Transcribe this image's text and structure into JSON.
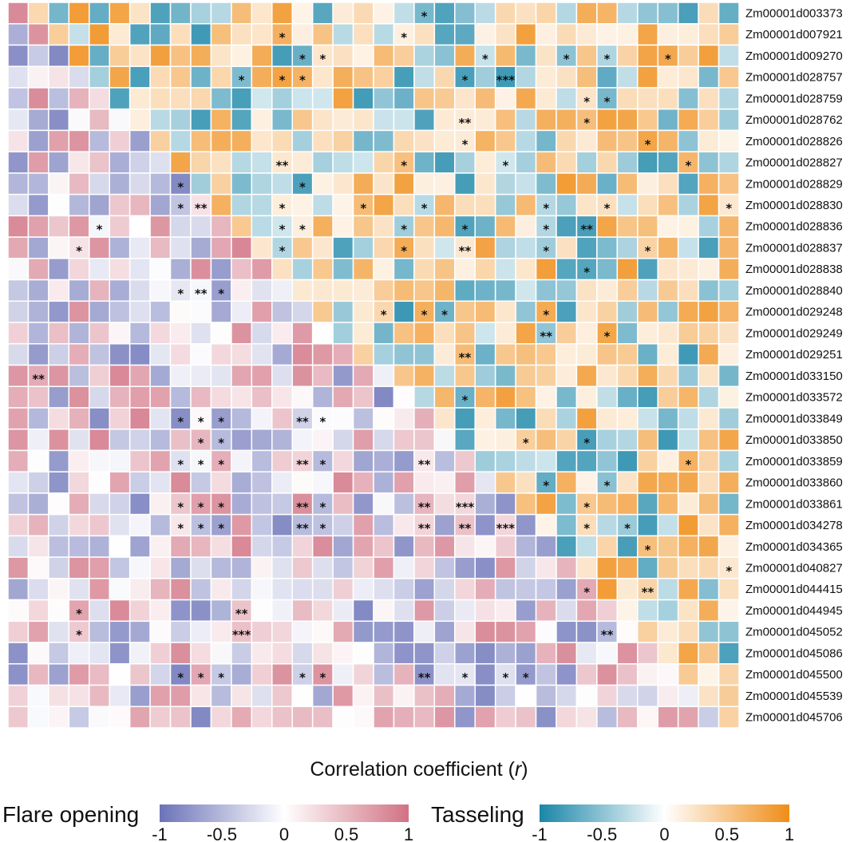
{
  "chart_data": {
    "type": "heatmap",
    "title": "Correlation coefficient (r)",
    "title_main": "Correlation coefficient (",
    "title_var": "r",
    "title_close": ")",
    "genes": [
      "Zm00001d003373",
      "Zm00001d007921",
      "Zm00001d009270",
      "Zm00001d028757",
      "Zm00001d028759",
      "Zm00001d028762",
      "Zm00001d028826",
      "Zm00001d028827",
      "Zm00001d028829",
      "Zm00001d028830",
      "Zm00001d028836",
      "Zm00001d028837",
      "Zm00001d028838",
      "Zm00001d028840",
      "Zm00001d029248",
      "Zm00001d029249",
      "Zm00001d029251",
      "Zm00001d033150",
      "Zm00001d033572",
      "Zm00001d033849",
      "Zm00001d033850",
      "Zm00001d033859",
      "Zm00001d033860",
      "Zm00001d033861",
      "Zm00001d034278",
      "Zm00001d034365",
      "Zm00001d040827",
      "Zm00001d044415",
      "Zm00001d044945",
      "Zm00001d045052",
      "Zm00001d045086",
      "Zm00001d045500",
      "Zm00001d045539",
      "Zm00001d045706"
    ],
    "triangles": {
      "lower": "Flare opening",
      "upper": "Tasseling"
    },
    "legends": [
      {
        "title": "Flare opening",
        "colors": [
          "#6b73b8",
          "#ffffff",
          "#d17283"
        ],
        "ticks": [
          "-1",
          "-0.5",
          "0",
          "0.5",
          "1"
        ],
        "range": [
          -1,
          1
        ]
      },
      {
        "title": "Tasseling",
        "colors": [
          "#1a86a8",
          "#ffffff",
          "#f08d17"
        ],
        "ticks": [
          "-1",
          "-0.5",
          "0",
          "0.5",
          "1"
        ],
        "range": [
          -1,
          1
        ]
      }
    ],
    "significant_cells": [
      {
        "row": 0,
        "col": 20,
        "label": "*"
      },
      {
        "row": 1,
        "col": 13,
        "label": "*"
      },
      {
        "row": 1,
        "col": 19,
        "label": "*"
      },
      {
        "row": 2,
        "col": 14,
        "label": "*"
      },
      {
        "row": 2,
        "col": 15,
        "label": "*"
      },
      {
        "row": 2,
        "col": 23,
        "label": "*"
      },
      {
        "row": 2,
        "col": 27,
        "label": "*"
      },
      {
        "row": 2,
        "col": 29,
        "label": "*"
      },
      {
        "row": 2,
        "col": 32,
        "label": "*"
      },
      {
        "row": 3,
        "col": 11,
        "label": "*"
      },
      {
        "row": 3,
        "col": 13,
        "label": "*"
      },
      {
        "row": 3,
        "col": 14,
        "label": "*"
      },
      {
        "row": 3,
        "col": 22,
        "label": "*"
      },
      {
        "row": 3,
        "col": 24,
        "label": "***"
      },
      {
        "row": 4,
        "col": 28,
        "label": "*"
      },
      {
        "row": 4,
        "col": 29,
        "label": "*"
      },
      {
        "row": 5,
        "col": 22,
        "label": "**"
      },
      {
        "row": 5,
        "col": 28,
        "label": "*"
      },
      {
        "row": 6,
        "col": 22,
        "label": "*"
      },
      {
        "row": 6,
        "col": 31,
        "label": "*"
      },
      {
        "row": 7,
        "col": 13,
        "label": "**"
      },
      {
        "row": 7,
        "col": 19,
        "label": "*"
      },
      {
        "row": 7,
        "col": 24,
        "label": "*"
      },
      {
        "row": 7,
        "col": 33,
        "label": "*"
      },
      {
        "row": 8,
        "col": 8,
        "label": "*"
      },
      {
        "row": 8,
        "col": 14,
        "label": "*"
      },
      {
        "row": 9,
        "col": 8,
        "label": "*"
      },
      {
        "row": 9,
        "col": 9,
        "label": "**"
      },
      {
        "row": 9,
        "col": 13,
        "label": "*"
      },
      {
        "row": 9,
        "col": 17,
        "label": "*"
      },
      {
        "row": 9,
        "col": 20,
        "label": "*"
      },
      {
        "row": 9,
        "col": 26,
        "label": "*"
      },
      {
        "row": 9,
        "col": 29,
        "label": "*"
      },
      {
        "row": 9,
        "col": 35,
        "label": "*"
      },
      {
        "row": 10,
        "col": 4,
        "label": "*"
      },
      {
        "row": 10,
        "col": 13,
        "label": "*"
      },
      {
        "row": 10,
        "col": 14,
        "label": "*"
      },
      {
        "row": 10,
        "col": 19,
        "label": "*"
      },
      {
        "row": 10,
        "col": 22,
        "label": "*"
      },
      {
        "row": 10,
        "col": 26,
        "label": "*"
      },
      {
        "row": 10,
        "col": 28,
        "label": "**"
      },
      {
        "row": 11,
        "col": 3,
        "label": "*"
      },
      {
        "row": 11,
        "col": 13,
        "label": "*"
      },
      {
        "row": 11,
        "col": 19,
        "label": "*"
      },
      {
        "row": 11,
        "col": 22,
        "label": "**"
      },
      {
        "row": 11,
        "col": 26,
        "label": "*"
      },
      {
        "row": 11,
        "col": 31,
        "label": "*"
      },
      {
        "row": 12,
        "col": 28,
        "label": "*"
      },
      {
        "row": 13,
        "col": 8,
        "label": "*"
      },
      {
        "row": 13,
        "col": 9,
        "label": "**"
      },
      {
        "row": 13,
        "col": 10,
        "label": "*"
      },
      {
        "row": 14,
        "col": 18,
        "label": "*"
      },
      {
        "row": 14,
        "col": 20,
        "label": "*"
      },
      {
        "row": 14,
        "col": 21,
        "label": "*"
      },
      {
        "row": 14,
        "col": 26,
        "label": "*"
      },
      {
        "row": 15,
        "col": 26,
        "label": "**"
      },
      {
        "row": 15,
        "col": 29,
        "label": "*"
      },
      {
        "row": 16,
        "col": 22,
        "label": "**"
      },
      {
        "row": 17,
        "col": 1,
        "label": "**"
      },
      {
        "row": 18,
        "col": 22,
        "label": "*"
      },
      {
        "row": 19,
        "col": 8,
        "label": "*"
      },
      {
        "row": 19,
        "col": 9,
        "label": "*"
      },
      {
        "row": 19,
        "col": 10,
        "label": "*"
      },
      {
        "row": 19,
        "col": 14,
        "label": "**"
      },
      {
        "row": 19,
        "col": 15,
        "label": "*"
      },
      {
        "row": 20,
        "col": 9,
        "label": "*"
      },
      {
        "row": 20,
        "col": 10,
        "label": "*"
      },
      {
        "row": 20,
        "col": 25,
        "label": "*"
      },
      {
        "row": 20,
        "col": 28,
        "label": "*"
      },
      {
        "row": 21,
        "col": 8,
        "label": "*"
      },
      {
        "row": 21,
        "col": 9,
        "label": "*"
      },
      {
        "row": 21,
        "col": 10,
        "label": "*"
      },
      {
        "row": 21,
        "col": 14,
        "label": "**"
      },
      {
        "row": 21,
        "col": 15,
        "label": "*"
      },
      {
        "row": 21,
        "col": 20,
        "label": "**"
      },
      {
        "row": 21,
        "col": 33,
        "label": "*"
      },
      {
        "row": 22,
        "col": 26,
        "label": "*"
      },
      {
        "row": 22,
        "col": 29,
        "label": "*"
      },
      {
        "row": 23,
        "col": 8,
        "label": "*"
      },
      {
        "row": 23,
        "col": 9,
        "label": "*"
      },
      {
        "row": 23,
        "col": 10,
        "label": "*"
      },
      {
        "row": 23,
        "col": 14,
        "label": "**"
      },
      {
        "row": 23,
        "col": 15,
        "label": "*"
      },
      {
        "row": 23,
        "col": 20,
        "label": "**"
      },
      {
        "row": 23,
        "col": 22,
        "label": "***"
      },
      {
        "row": 23,
        "col": 28,
        "label": "*"
      },
      {
        "row": 24,
        "col": 8,
        "label": "*"
      },
      {
        "row": 24,
        "col": 9,
        "label": "*"
      },
      {
        "row": 24,
        "col": 10,
        "label": "*"
      },
      {
        "row": 24,
        "col": 14,
        "label": "**"
      },
      {
        "row": 24,
        "col": 15,
        "label": "*"
      },
      {
        "row": 24,
        "col": 20,
        "label": "**"
      },
      {
        "row": 24,
        "col": 22,
        "label": "**"
      },
      {
        "row": 24,
        "col": 24,
        "label": "***"
      },
      {
        "row": 24,
        "col": 28,
        "label": "*"
      },
      {
        "row": 24,
        "col": 30,
        "label": "*"
      },
      {
        "row": 25,
        "col": 31,
        "label": "*"
      },
      {
        "row": 26,
        "col": 35,
        "label": "*"
      },
      {
        "row": 27,
        "col": 28,
        "label": "*"
      },
      {
        "row": 27,
        "col": 31,
        "label": "**"
      },
      {
        "row": 28,
        "col": 3,
        "label": "*"
      },
      {
        "row": 28,
        "col": 11,
        "label": "**"
      },
      {
        "row": 29,
        "col": 3,
        "label": "*"
      },
      {
        "row": 29,
        "col": 11,
        "label": "***"
      },
      {
        "row": 29,
        "col": 29,
        "label": "**"
      },
      {
        "row": 31,
        "col": 8,
        "label": "*"
      },
      {
        "row": 31,
        "col": 9,
        "label": "*"
      },
      {
        "row": 31,
        "col": 10,
        "label": "*"
      },
      {
        "row": 31,
        "col": 14,
        "label": "*"
      },
      {
        "row": 31,
        "col": 15,
        "label": "*"
      },
      {
        "row": 31,
        "col": 20,
        "label": "**"
      },
      {
        "row": 31,
        "col": 22,
        "label": "*"
      },
      {
        "row": 31,
        "col": 24,
        "label": "*"
      },
      {
        "row": 31,
        "col": 25,
        "label": "*"
      }
    ]
  }
}
